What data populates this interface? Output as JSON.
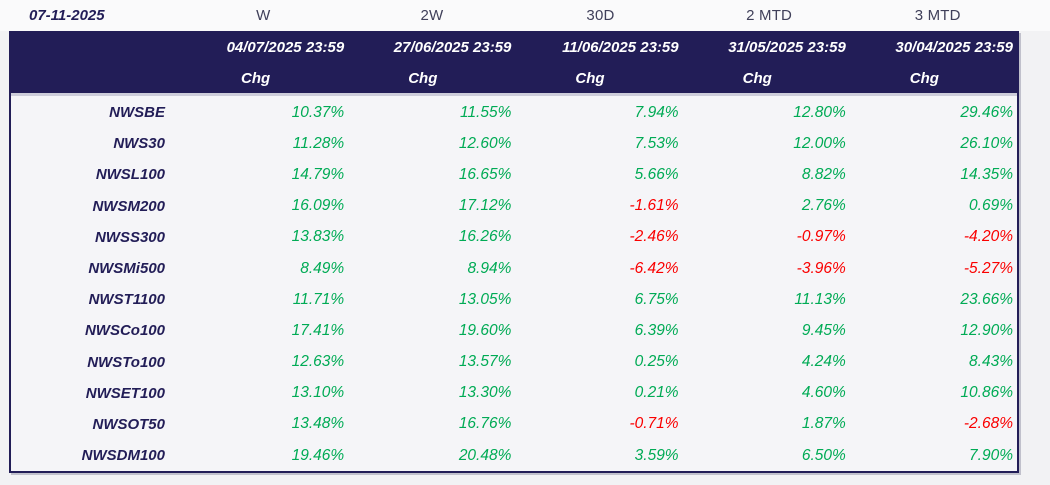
{
  "meta": {
    "report_date": "07-11-2025"
  },
  "colors": {
    "navy": "#221d57",
    "positive": "#00ab55",
    "negative": "#fa0000",
    "band_text": "#ffffff"
  },
  "columns": [
    {
      "period": "W",
      "as_of": "04/07/2025 23:59",
      "metric": "Chg"
    },
    {
      "period": "2W",
      "as_of": "27/06/2025 23:59",
      "metric": "Chg"
    },
    {
      "period": "30D",
      "as_of": "11/06/2025 23:59",
      "metric": "Chg"
    },
    {
      "period": "2 MTD",
      "as_of": "31/05/2025 23:59",
      "metric": "Chg"
    },
    {
      "period": "3 MTD",
      "as_of": "30/04/2025 23:59",
      "metric": "Chg"
    }
  ],
  "rows": [
    {
      "index": "NWSBE",
      "values": [
        "10.37%",
        "11.55%",
        "7.94%",
        "12.80%",
        "29.46%"
      ]
    },
    {
      "index": "NWS30",
      "values": [
        "11.28%",
        "12.60%",
        "7.53%",
        "12.00%",
        "26.10%"
      ]
    },
    {
      "index": "NWSL100",
      "values": [
        "14.79%",
        "16.65%",
        "5.66%",
        "8.82%",
        "14.35%"
      ]
    },
    {
      "index": "NWSM200",
      "values": [
        "16.09%",
        "17.12%",
        "-1.61%",
        "2.76%",
        "0.69%"
      ]
    },
    {
      "index": "NWSS300",
      "values": [
        "13.83%",
        "16.26%",
        "-2.46%",
        "-0.97%",
        "-4.20%"
      ]
    },
    {
      "index": "NWSMi500",
      "values": [
        "8.49%",
        "8.94%",
        "-6.42%",
        "-3.96%",
        "-5.27%"
      ]
    },
    {
      "index": "NWST1100",
      "values": [
        "11.71%",
        "13.05%",
        "6.75%",
        "11.13%",
        "23.66%"
      ]
    },
    {
      "index": "NWSCo100",
      "values": [
        "17.41%",
        "19.60%",
        "6.39%",
        "9.45%",
        "12.90%"
      ]
    },
    {
      "index": "NWSTo100",
      "values": [
        "12.63%",
        "13.57%",
        "0.25%",
        "4.24%",
        "8.43%"
      ]
    },
    {
      "index": "NWSET100",
      "values": [
        "13.10%",
        "13.30%",
        "0.21%",
        "4.60%",
        "10.86%"
      ]
    },
    {
      "index": "NWSOT50",
      "values": [
        "13.48%",
        "16.76%",
        "-0.71%",
        "1.87%",
        "-2.68%"
      ]
    },
    {
      "index": "NWSDM100",
      "values": [
        "19.46%",
        "20.48%",
        "3.59%",
        "6.50%",
        "7.90%"
      ]
    }
  ]
}
